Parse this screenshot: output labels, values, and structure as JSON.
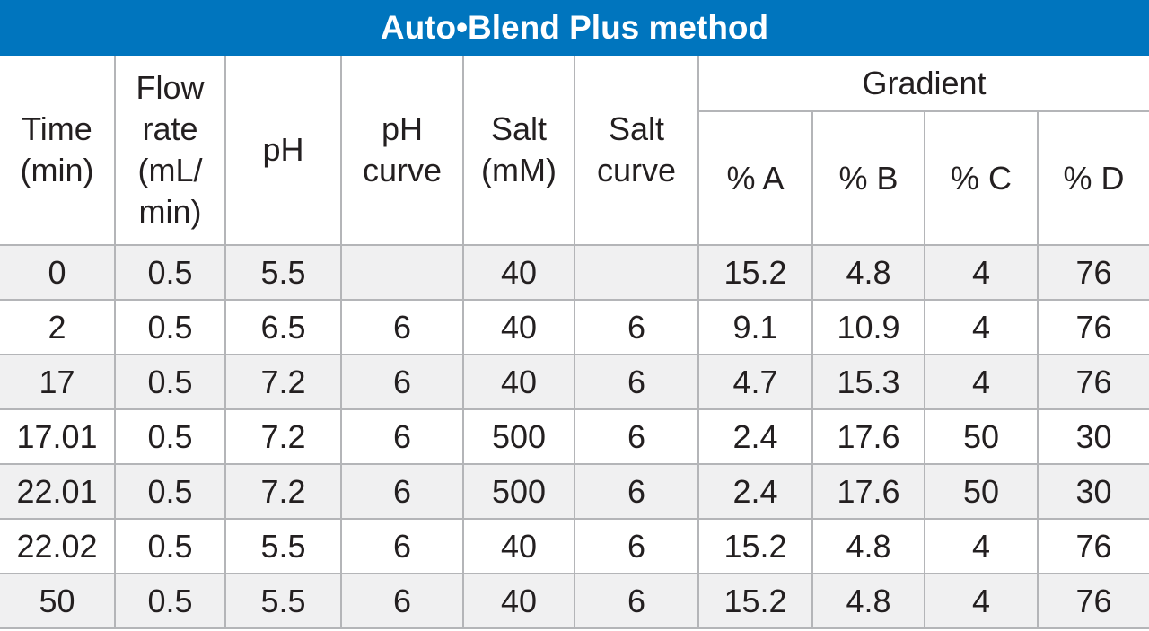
{
  "title": "Auto•Blend Plus method",
  "headers": {
    "time": [
      "Time",
      "(min)"
    ],
    "flow_rate": [
      "Flow",
      "rate",
      "(mL/",
      "min)"
    ],
    "ph": [
      "pH"
    ],
    "ph_curve": [
      "pH",
      "curve"
    ],
    "salt": [
      "Salt",
      "(mM)"
    ],
    "salt_curve": [
      "Salt",
      "curve"
    ],
    "gradient": "Gradient",
    "pct_a": "% A",
    "pct_b": "% B",
    "pct_c": "% C",
    "pct_d": "% D"
  },
  "rows": [
    [
      "0",
      "0.5",
      "5.5",
      "",
      "40",
      "",
      "15.2",
      "4.8",
      "4",
      "76"
    ],
    [
      "2",
      "0.5",
      "6.5",
      "6",
      "40",
      "6",
      "9.1",
      "10.9",
      "4",
      "76"
    ],
    [
      "17",
      "0.5",
      "7.2",
      "6",
      "40",
      "6",
      "4.7",
      "15.3",
      "4",
      "76"
    ],
    [
      "17.01",
      "0.5",
      "7.2",
      "6",
      "500",
      "6",
      "2.4",
      "17.6",
      "50",
      "30"
    ],
    [
      "22.01",
      "0.5",
      "7.2",
      "6",
      "500",
      "6",
      "2.4",
      "17.6",
      "50",
      "30"
    ],
    [
      "22.02",
      "0.5",
      "5.5",
      "6",
      "40",
      "6",
      "15.2",
      "4.8",
      "4",
      "76"
    ],
    [
      "50",
      "0.5",
      "5.5",
      "6",
      "40",
      "6",
      "15.2",
      "4.8",
      "4",
      "76"
    ]
  ]
}
